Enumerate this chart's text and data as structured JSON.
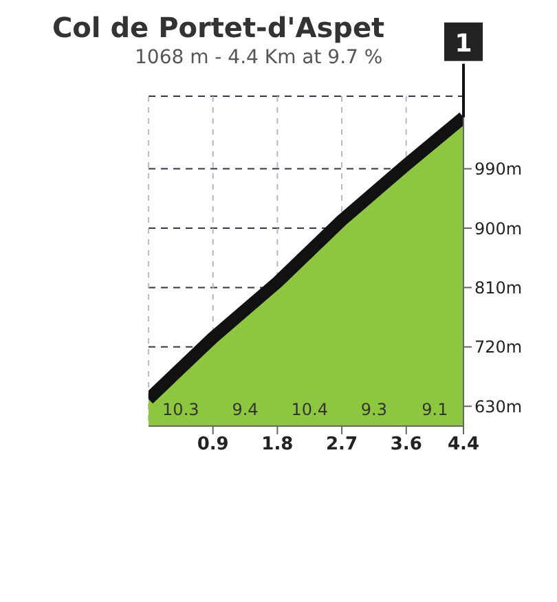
{
  "chart_data": {
    "type": "area",
    "title": "Col de Portet-d'Aspet",
    "subtitle": "1068 m - 4.4 Km at 9.7 %",
    "x": [
      0,
      0.9,
      1.8,
      2.7,
      3.6,
      4.4
    ],
    "series": [
      {
        "color": "#8dc63f",
        "values": [
          641,
          734,
          818,
          912,
          996,
          1068
        ]
      }
    ],
    "xlim": [
      0,
      4.4
    ],
    "xticks": [
      0.9,
      1.8,
      2.7,
      3.6,
      4.4
    ],
    "ylim": [
      600,
      1100
    ],
    "yticks": [
      {
        "value": 630,
        "label": "630m"
      },
      {
        "value": 720,
        "label": "720m"
      },
      {
        "value": 810,
        "label": "810m"
      },
      {
        "value": 900,
        "label": "900m"
      },
      {
        "value": 990,
        "label": "990m"
      }
    ],
    "grid": true,
    "annotations": [
      "10.3",
      "9.4",
      "10.4",
      "9.3",
      "9.1",
      "1"
    ]
  }
}
